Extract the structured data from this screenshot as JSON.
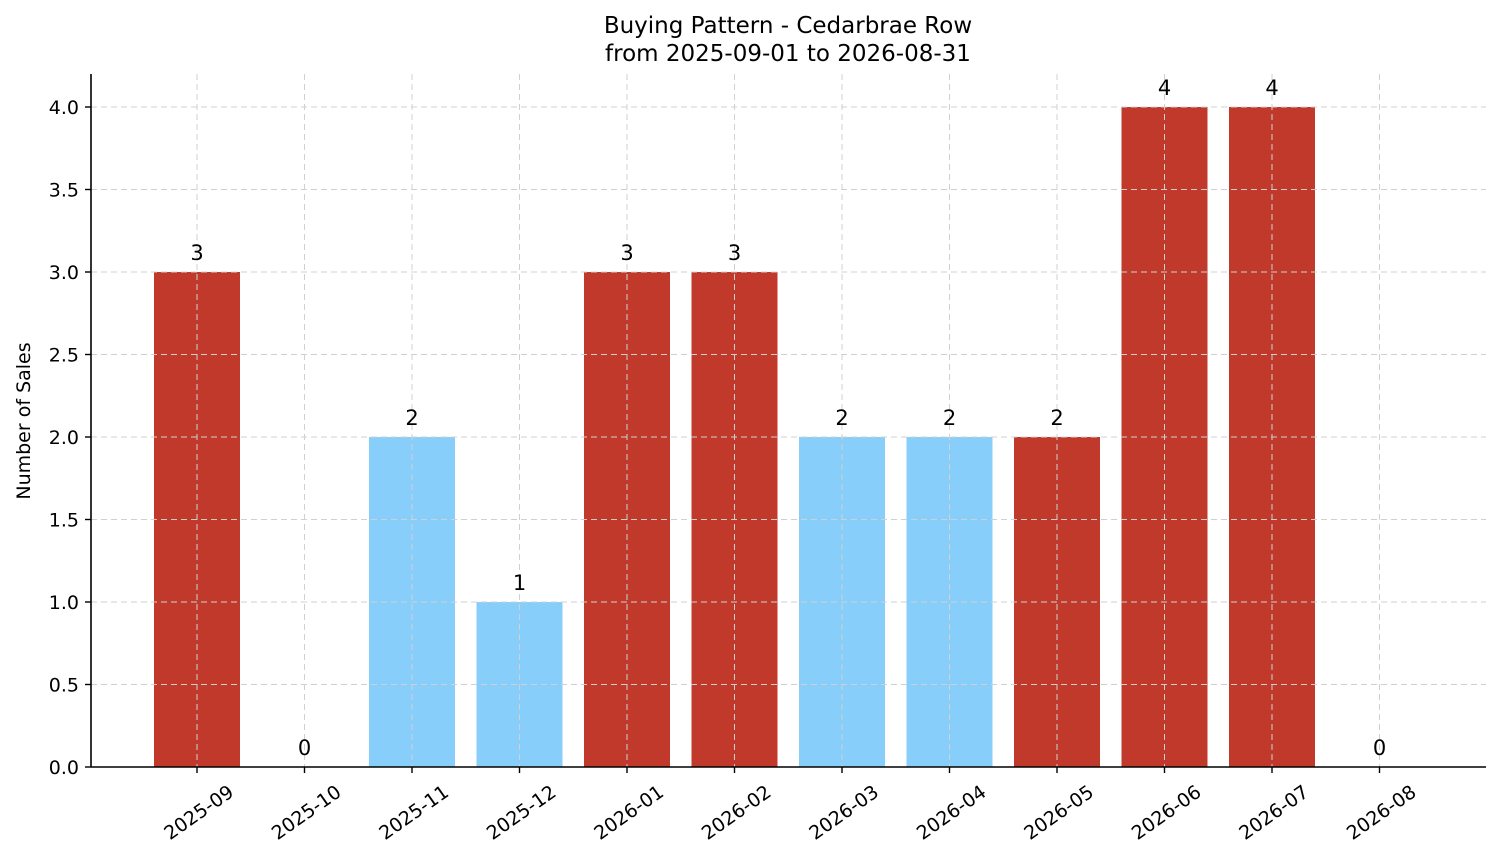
{
  "chart_data": {
    "type": "bar",
    "title": "Buying Pattern - Cedarbrae Row",
    "subtitle": "from 2025-09-01 to 2026-08-31",
    "xlabel": "",
    "ylabel": "Number of Sales",
    "categories": [
      "2025-09",
      "2025-10",
      "2025-11",
      "2025-12",
      "2026-01",
      "2026-02",
      "2026-03",
      "2026-04",
      "2026-05",
      "2026-06",
      "2026-07",
      "2026-08"
    ],
    "values": [
      3,
      0,
      2,
      1,
      3,
      3,
      2,
      2,
      2,
      4,
      4,
      0
    ],
    "bar_labels": [
      "3",
      "0",
      "2",
      "1",
      "3",
      "3",
      "2",
      "2",
      "2",
      "4",
      "4",
      "0"
    ],
    "bar_colors": [
      "#c0392b",
      "#c0392b",
      "#87cefa",
      "#87cefa",
      "#c0392b",
      "#c0392b",
      "#87cefa",
      "#87cefa",
      "#c0392b",
      "#c0392b",
      "#c0392b",
      "#c0392b"
    ],
    "ylim": [
      0,
      4.2
    ],
    "yticks": [
      "0.0",
      "0.5",
      "1.0",
      "1.5",
      "2.0",
      "2.5",
      "3.0",
      "3.5",
      "4.0"
    ],
    "ytick_values": [
      0,
      0.5,
      1,
      1.5,
      2,
      2.5,
      3,
      3.5,
      4
    ],
    "grid": true,
    "legend": "none"
  }
}
